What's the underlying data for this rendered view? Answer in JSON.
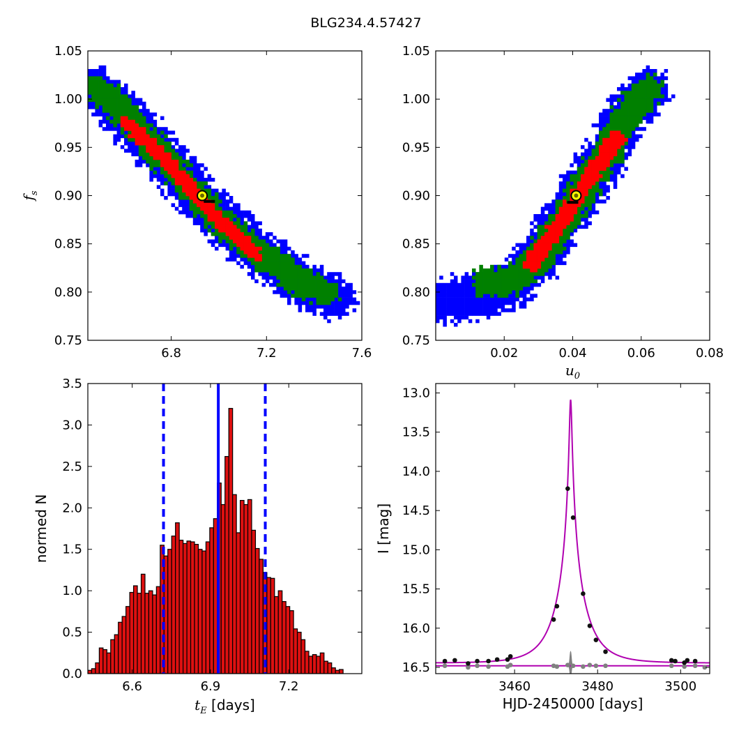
{
  "figure": {
    "title": "BLG234.4.57427"
  },
  "colors": {
    "sigma3": "#0000ff",
    "sigma2": "#008000",
    "sigma1": "#ff0000",
    "best_fill": "#ffff00",
    "hist_bar": "#dd1010",
    "median_line": "#0000ff",
    "model_curve": "#b000b0",
    "data_point": "#111111",
    "residual": "#808080"
  },
  "chart_data": [
    {
      "type": "heatmap",
      "id": "fs_vs_tE",
      "title": "",
      "xlabel": "",
      "ylabel": "f_s",
      "xlim": [
        6.45,
        7.6
      ],
      "ylim": [
        0.75,
        1.05
      ],
      "xticks": [
        "6.8",
        "7.2",
        "7.6"
      ],
      "yticks": [
        "0.75",
        "0.80",
        "0.85",
        "0.90",
        "0.95",
        "1.00",
        "1.05"
      ],
      "legend": "none",
      "regions": [
        {
          "level": "3-sigma",
          "color": "blue",
          "ridge": [
            [
              6.48,
              1.01
            ],
            [
              6.6,
              0.985
            ],
            [
              6.8,
              0.93
            ],
            [
              7.0,
              0.875
            ],
            [
              7.2,
              0.835
            ],
            [
              7.35,
              0.81
            ],
            [
              7.48,
              0.795
            ]
          ],
          "half_width": 0.022
        },
        {
          "level": "2-sigma",
          "color": "green",
          "ridge": [
            [
              6.5,
              1.01
            ],
            [
              6.6,
              0.985
            ],
            [
              6.8,
              0.93
            ],
            [
              7.0,
              0.875
            ],
            [
              7.2,
              0.835
            ],
            [
              7.35,
              0.81
            ],
            [
              7.45,
              0.8
            ]
          ],
          "half_width": 0.014
        },
        {
          "level": "1-sigma",
          "color": "red",
          "ridge": [
            [
              6.62,
              0.975
            ],
            [
              6.8,
              0.93
            ],
            [
              7.0,
              0.875
            ],
            [
              7.15,
              0.84
            ]
          ],
          "half_width": 0.007
        }
      ],
      "best_fit": {
        "x": 6.93,
        "y": 0.9
      },
      "median_marker": {
        "x": 6.96,
        "y": 0.894
      }
    },
    {
      "type": "heatmap",
      "id": "fs_vs_u0",
      "title": "",
      "xlabel": "u_0",
      "ylabel": "",
      "xlim": [
        0.0,
        0.08
      ],
      "ylim": [
        0.75,
        1.05
      ],
      "xticks": [
        "0.02",
        "0.04",
        "0.06",
        "0.08"
      ],
      "yticks": [
        "0.75",
        "0.80",
        "0.85",
        "0.90",
        "0.95",
        "1.00",
        "1.05"
      ],
      "legend": "none",
      "regions": [
        {
          "level": "3-sigma",
          "color": "blue",
          "ridge": [
            [
              0.0,
              0.79
            ],
            [
              0.012,
              0.795
            ],
            [
              0.022,
              0.808
            ],
            [
              0.03,
              0.835
            ],
            [
              0.04,
              0.89
            ],
            [
              0.05,
              0.945
            ],
            [
              0.056,
              0.985
            ],
            [
              0.062,
              1.01
            ]
          ],
          "half_width": 0.022
        },
        {
          "level": "2-sigma",
          "color": "green",
          "ridge": [
            [
              0.015,
              0.81
            ],
            [
              0.022,
              0.812
            ],
            [
              0.03,
              0.835
            ],
            [
              0.04,
              0.89
            ],
            [
              0.05,
              0.945
            ],
            [
              0.056,
              0.985
            ],
            [
              0.062,
              1.01
            ]
          ],
          "half_width": 0.015
        },
        {
          "level": "1-sigma",
          "color": "red",
          "ridge": [
            [
              0.028,
              0.83
            ],
            [
              0.034,
              0.86
            ],
            [
              0.04,
              0.89
            ],
            [
              0.046,
              0.925
            ],
            [
              0.053,
              0.96
            ]
          ],
          "half_width": 0.008
        }
      ],
      "best_fit": {
        "x": 0.041,
        "y": 0.9
      },
      "median_marker": {
        "x": 0.04,
        "y": 0.893
      }
    },
    {
      "type": "bar",
      "id": "tE_histogram",
      "title": "",
      "xlabel": "t_E [days]",
      "ylabel": "normed N",
      "xlim": [
        6.43,
        7.48
      ],
      "ylim": [
        0.0,
        3.5
      ],
      "xticks": [
        "6.6",
        "6.9",
        "7.2"
      ],
      "yticks": [
        "0.0",
        "0.5",
        "1.0",
        "1.5",
        "2.0",
        "2.5",
        "3.0",
        "3.5"
      ],
      "legend": "none",
      "bin_start": 6.43,
      "bin_width": 0.0146,
      "values": [
        0.04,
        0.06,
        0.13,
        0.31,
        0.29,
        0.25,
        0.41,
        0.47,
        0.62,
        0.69,
        0.81,
        0.98,
        1.06,
        0.97,
        1.2,
        0.97,
        1.0,
        0.95,
        1.05,
        1.55,
        1.42,
        1.5,
        1.66,
        1.82,
        1.61,
        1.57,
        1.6,
        1.59,
        1.56,
        1.5,
        1.48,
        1.59,
        1.76,
        1.87,
        2.3,
        2.04,
        2.62,
        3.2,
        2.16,
        1.7,
        2.09,
        2.04,
        2.1,
        1.73,
        1.51,
        1.38,
        1.22,
        1.16,
        1.15,
        0.93,
        1.0,
        0.87,
        0.81,
        0.76,
        0.54,
        0.5,
        0.41,
        0.27,
        0.21,
        0.23,
        0.21,
        0.25,
        0.15,
        0.13,
        0.07,
        0.04,
        0.05
      ],
      "vlines": [
        {
          "x": 6.93,
          "style": "solid"
        },
        {
          "x": 6.72,
          "style": "dashed"
        },
        {
          "x": 7.11,
          "style": "dashed"
        }
      ]
    },
    {
      "type": "line",
      "id": "light_curve",
      "title": "",
      "xlabel": "HJD-2450000 [days]",
      "ylabel": "I [mag]",
      "xlim": [
        3441,
        3507
      ],
      "ylim": [
        16.58,
        12.88
      ],
      "xticks": [
        "3460",
        "3480",
        "3500"
      ],
      "yticks": [
        "13.0",
        "13.5",
        "14.0",
        "14.5",
        "15.0",
        "15.5",
        "16.0",
        "16.5"
      ],
      "legend": "none",
      "model": {
        "t0": 3473.5,
        "tE": 6.93,
        "u0": 0.041,
        "fs": 0.9,
        "baseline": 16.445
      },
      "residual_baseline": 16.48,
      "series": [
        {
          "x": [
            3443.2,
            3445.6,
            3448.8,
            3451.0,
            3453.7,
            3455.8,
            3458.3,
            3459.0,
            3469.4,
            3470.2,
            3472.8,
            3474.1,
            3476.5,
            3478.1,
            3479.6,
            3481.9,
            3497.8,
            3498.7,
            3500.9,
            3501.6,
            3503.5
          ],
          "y": [
            16.42,
            16.41,
            16.45,
            16.42,
            16.42,
            16.4,
            16.4,
            16.36,
            15.89,
            15.72,
            14.22,
            14.59,
            15.56,
            15.97,
            16.15,
            16.3,
            16.41,
            16.42,
            16.44,
            16.41,
            16.42
          ]
        },
        {
          "x": [
            3443.2,
            3448.8,
            3451.0,
            3453.7,
            3458.3,
            3459.0,
            3469.4,
            3470.2,
            3472.8,
            3474.1,
            3476.5,
            3478.1,
            3479.6,
            3481.9,
            3497.8,
            3500.9,
            3503.5,
            3505.8
          ],
          "y": [
            16.48,
            16.5,
            16.48,
            16.49,
            16.49,
            16.47,
            16.48,
            16.49,
            16.47,
            16.48,
            16.49,
            16.47,
            16.48,
            16.48,
            16.48,
            16.49,
            16.48,
            16.5
          ]
        }
      ]
    }
  ]
}
